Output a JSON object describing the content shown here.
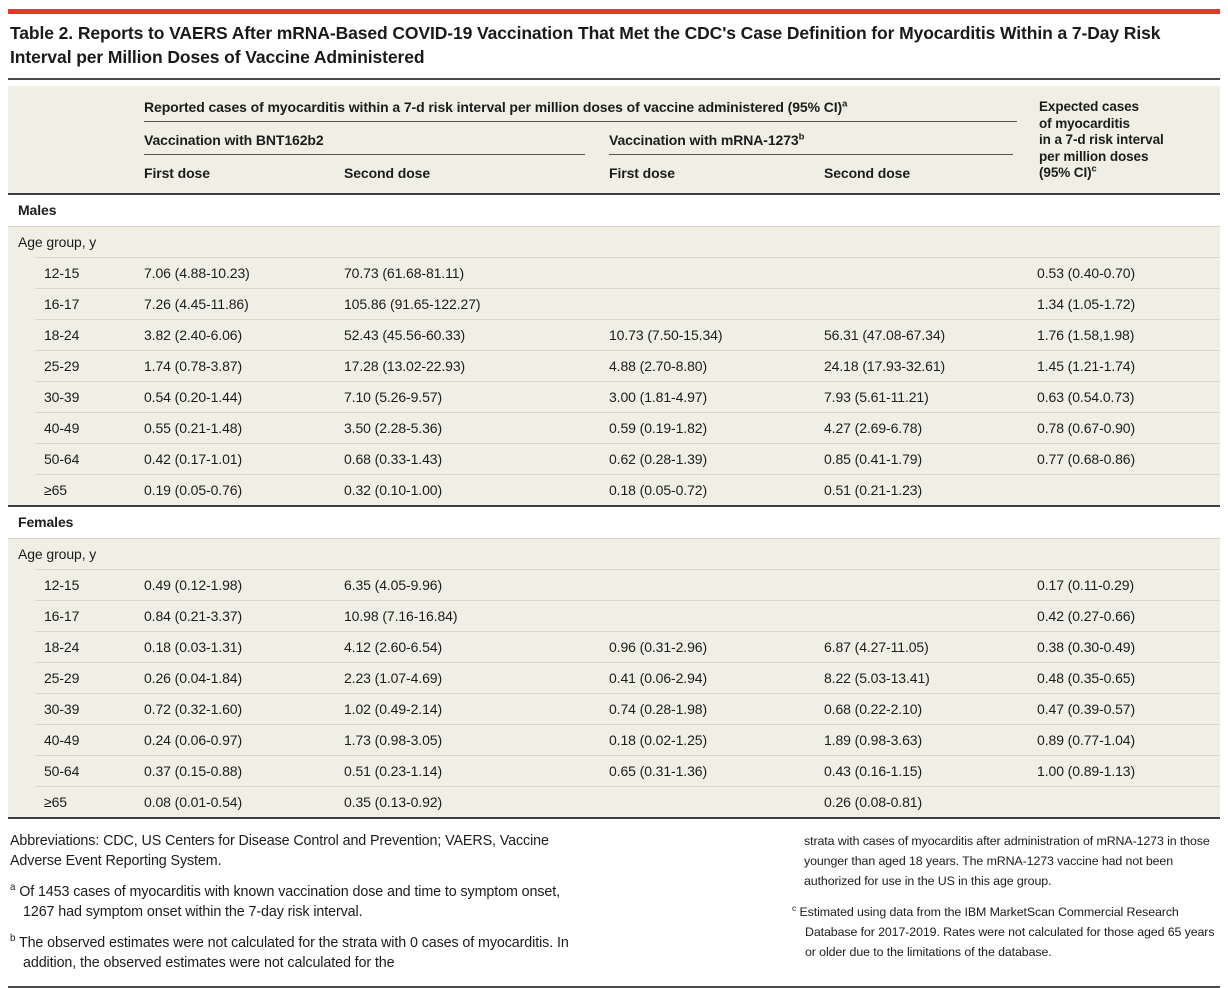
{
  "colors": {
    "accent_red": "#e8362b",
    "table_background": "#f0efe5",
    "rule_dark": "#3d3d3d",
    "row_separator": "#d9d7c8"
  },
  "title": "Table 2. Reports to VAERS After mRNA-Based COVID-19 Vaccination That Met the CDC's Case Definition for Myocarditis Within a 7-Day Risk Interval per Million Doses of Vaccine Administered",
  "header": {
    "reported_span": "Reported cases of myocarditis within a 7-d risk interval per million doses of vaccine administered (95% CI)",
    "reported_sup": "a",
    "bnt_span": "Vaccination with BNT162b2",
    "mrna_span": "Vaccination with mRNA-1273",
    "mrna_sup": "b",
    "first_dose": "First dose",
    "second_dose": "Second dose",
    "expected_lines": [
      "Expected cases",
      "of myocarditis",
      "in a 7-d risk interval",
      "per million doses",
      "(95% CI)"
    ],
    "expected_sup": "c"
  },
  "sections": {
    "males": {
      "label": "Males",
      "age_header": "Age group, y",
      "rows": [
        {
          "age": "12-15",
          "bnt1": "7.06 (4.88-10.23)",
          "bnt2": "70.73 (61.68-81.11)",
          "m1": "",
          "m2": "",
          "exp": "0.53 (0.40-0.70)"
        },
        {
          "age": "16-17",
          "bnt1": "7.26 (4.45-11.86)",
          "bnt2": "105.86 (91.65-122.27)",
          "m1": "",
          "m2": "",
          "exp": "1.34 (1.05-1.72)"
        },
        {
          "age": "18-24",
          "bnt1": "3.82 (2.40-6.06)",
          "bnt2": "52.43 (45.56-60.33)",
          "m1": "10.73 (7.50-15.34)",
          "m2": "56.31 (47.08-67.34)",
          "exp": "1.76 (1.58,1.98)"
        },
        {
          "age": "25-29",
          "bnt1": "1.74 (0.78-3.87)",
          "bnt2": "17.28 (13.02-22.93)",
          "m1": "4.88 (2.70-8.80)",
          "m2": "24.18 (17.93-32.61)",
          "exp": "1.45 (1.21-1.74)"
        },
        {
          "age": "30-39",
          "bnt1": "0.54 (0.20-1.44)",
          "bnt2": "7.10 (5.26-9.57)",
          "m1": "3.00 (1.81-4.97)",
          "m2": "7.93 (5.61-11.21)",
          "exp": "0.63 (0.54.0.73)"
        },
        {
          "age": "40-49",
          "bnt1": "0.55 (0.21-1.48)",
          "bnt2": "3.50 (2.28-5.36)",
          "m1": "0.59 (0.19-1.82)",
          "m2": "4.27 (2.69-6.78)",
          "exp": "0.78 (0.67-0.90)"
        },
        {
          "age": "50-64",
          "bnt1": "0.42 (0.17-1.01)",
          "bnt2": "0.68 (0.33-1.43)",
          "m1": "0.62 (0.28-1.39)",
          "m2": "0.85 (0.41-1.79)",
          "exp": "0.77 (0.68-0.86)"
        },
        {
          "age": "≥65",
          "bnt1": "0.19 (0.05-0.76)",
          "bnt2": "0.32 (0.10-1.00)",
          "m1": "0.18 (0.05-0.72)",
          "m2": "0.51 (0.21-1.23)",
          "exp": ""
        }
      ]
    },
    "females": {
      "label": "Females",
      "age_header": "Age group, y",
      "rows": [
        {
          "age": "12-15",
          "bnt1": "0.49 (0.12-1.98)",
          "bnt2": "6.35 (4.05-9.96)",
          "m1": "",
          "m2": "",
          "exp": "0.17 (0.11-0.29)"
        },
        {
          "age": "16-17",
          "bnt1": "0.84 (0.21-3.37)",
          "bnt2": "10.98 (7.16-16.84)",
          "m1": "",
          "m2": "",
          "exp": "0.42 (0.27-0.66)"
        },
        {
          "age": "18-24",
          "bnt1": "0.18 (0.03-1.31)",
          "bnt2": "4.12 (2.60-6.54)",
          "m1": "0.96 (0.31-2.96)",
          "m2": "6.87 (4.27-11.05)",
          "exp": "0.38 (0.30-0.49)"
        },
        {
          "age": "25-29",
          "bnt1": "0.26 (0.04-1.84)",
          "bnt2": "2.23 (1.07-4.69)",
          "m1": "0.41 (0.06-2.94)",
          "m2": "8.22 (5.03-13.41)",
          "exp": "0.48 (0.35-0.65)"
        },
        {
          "age": "30-39",
          "bnt1": "0.72 (0.32-1.60)",
          "bnt2": "1.02 (0.49-2.14)",
          "m1": "0.74 (0.28-1.98)",
          "m2": "0.68 (0.22-2.10)",
          "exp": "0.47 (0.39-0.57)"
        },
        {
          "age": "40-49",
          "bnt1": "0.24 (0.06-0.97)",
          "bnt2": "1.73 (0.98-3.05)",
          "m1": "0.18 (0.02-1.25)",
          "m2": "1.89 (0.98-3.63)",
          "exp": "0.89 (0.77-1.04)"
        },
        {
          "age": "50-64",
          "bnt1": "0.37 (0.15-0.88)",
          "bnt2": "0.51 (0.23-1.14)",
          "m1": "0.65 (0.31-1.36)",
          "m2": "0.43 (0.16-1.15)",
          "exp": "1.00 (0.89-1.13)"
        },
        {
          "age": "≥65",
          "bnt1": "0.08 (0.01-0.54)",
          "bnt2": "0.35 (0.13-0.92)",
          "m1": "",
          "m2": "0.26 (0.08-0.81)",
          "exp": ""
        }
      ]
    }
  },
  "footnotes": {
    "abbreviations": "Abbreviations: CDC, US Centers for Disease Control and Prevention; VAERS, Vaccine Adverse Event Reporting System.",
    "a_marker": "a",
    "a": "Of 1453 cases of myocarditis with known vaccination dose and time to symptom onset, 1267 had symptom onset within the 7-day risk interval.",
    "b_marker": "b",
    "b": "The observed estimates were not calculated for the strata with 0 cases of myocarditis. In addition, the observed estimates were not calculated for the",
    "b_continuation": "strata with cases of myocarditis after administration of mRNA-1273 in those younger than aged 18 years. The mRNA-1273 vaccine had not been authorized for use in the US in this age group.",
    "c_marker": "c",
    "c": "Estimated using data from the IBM MarketScan Commercial Research Database for 2017-2019. Rates were not calculated for those aged 65 years or older due to the limitations of the database."
  }
}
